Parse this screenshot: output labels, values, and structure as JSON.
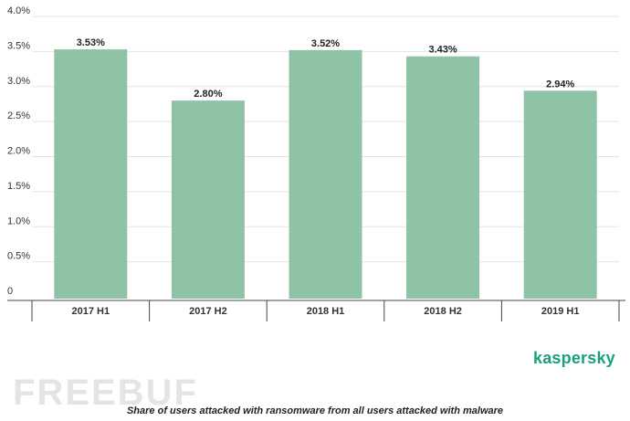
{
  "chart_data": {
    "type": "bar",
    "categories": [
      "2017 H1",
      "2017 H2",
      "2018 H1",
      "2018 H2",
      "2019 H1"
    ],
    "values": [
      3.53,
      2.8,
      3.52,
      3.43,
      2.94
    ],
    "data_labels": [
      "3.53%",
      "2.80%",
      "3.52%",
      "3.43%",
      "2.94%"
    ],
    "y_ticks": [
      "0",
      "0.5%",
      "1.0%",
      "1.5%",
      "2.0%",
      "2.5%",
      "3.0%",
      "3.5%",
      "4.0%"
    ],
    "ylim": [
      0,
      4.0
    ],
    "grid": true,
    "bar_color": "#8fc3a6",
    "caption": "Share of users attacked with ransomware from all users attacked with malware"
  },
  "brand": {
    "logo_text": "kaspersky",
    "logo_color": "#1aa07a"
  },
  "watermark": {
    "text": "FREEBUF"
  }
}
